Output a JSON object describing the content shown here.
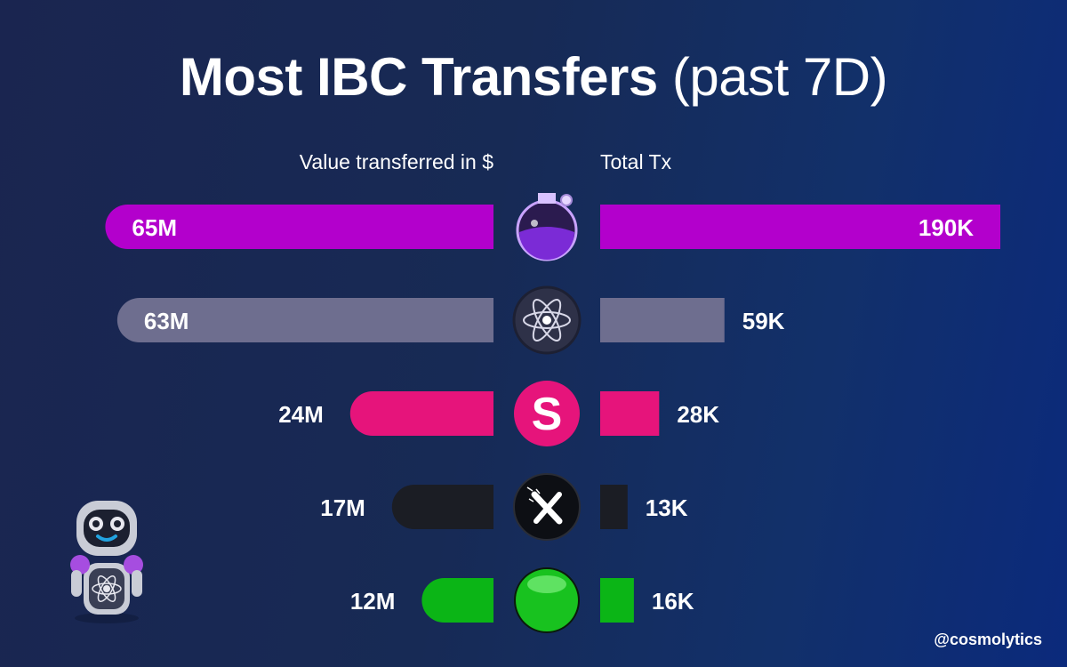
{
  "header": {
    "title_bold": "Most IBC Transfers",
    "title_normal": "(past 7D)"
  },
  "columns": {
    "left_label": "Value transferred in $",
    "right_label": "Total Tx"
  },
  "footer": {
    "handle": "@cosmolytics"
  },
  "chart_data": {
    "type": "bar",
    "orientation": "horizontal-butterfly",
    "rows": [
      {
        "icon": "flask-potion-icon",
        "value_usd": 65000000,
        "value_label": "65M",
        "tx": 190000,
        "tx_label": "190K",
        "color": "#b300cc"
      },
      {
        "icon": "atom-icon",
        "value_usd": 63000000,
        "value_label": "63M",
        "tx": 59000,
        "tx_label": "59K",
        "color": "#6e6e8f"
      },
      {
        "icon": "s-logo-icon",
        "value_usd": 24000000,
        "value_label": "24M",
        "tx": 28000,
        "tx_label": "28K",
        "color": "#e6147b"
      },
      {
        "icon": "x-logo-icon",
        "value_usd": 17000000,
        "value_label": "17M",
        "tx": 13000,
        "tx_label": "13K",
        "color": "#1b1d24"
      },
      {
        "icon": "green-orb-icon",
        "value_usd": 12000000,
        "value_label": "12M",
        "tx": 16000,
        "tx_label": "16K",
        "color": "#0bb516"
      }
    ],
    "left_series": {
      "xlim": [
        0,
        67000000
      ]
    },
    "right_series": {
      "xlim": [
        0,
        190000
      ]
    }
  }
}
